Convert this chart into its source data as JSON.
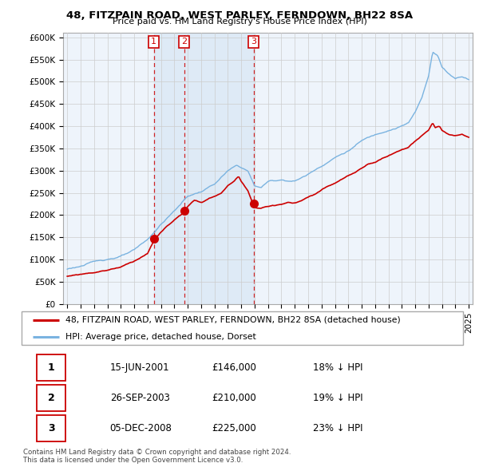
{
  "title": "48, FITZPAIN ROAD, WEST PARLEY, FERNDOWN, BH22 8SA",
  "subtitle": "Price paid vs. HM Land Registry's House Price Index (HPI)",
  "sale_dates_num": [
    2001.46,
    2003.74,
    2008.92
  ],
  "sale_prices": [
    146000,
    210000,
    225000
  ],
  "sale_labels": [
    "1",
    "2",
    "3"
  ],
  "hpi_color": "#7ab3e0",
  "sale_color": "#cc0000",
  "vline_color": "#cc0000",
  "shade_color": "#ddeeff",
  "yticks": [
    0,
    50000,
    100000,
    150000,
    200000,
    250000,
    300000,
    350000,
    400000,
    450000,
    500000,
    550000,
    600000
  ],
  "ytick_labels": [
    "£0",
    "£50K",
    "£100K",
    "£150K",
    "£200K",
    "£250K",
    "£300K",
    "£350K",
    "£400K",
    "£450K",
    "£500K",
    "£550K",
    "£600K"
  ],
  "ylim": [
    0,
    610000
  ],
  "xlim_min": 1994.7,
  "xlim_max": 2025.3,
  "xticks": [
    1995,
    1996,
    1997,
    1998,
    1999,
    2000,
    2001,
    2002,
    2003,
    2004,
    2005,
    2006,
    2007,
    2008,
    2009,
    2010,
    2011,
    2012,
    2013,
    2014,
    2015,
    2016,
    2017,
    2018,
    2019,
    2020,
    2021,
    2022,
    2023,
    2024,
    2025
  ],
  "legend_line1": "48, FITZPAIN ROAD, WEST PARLEY, FERNDOWN, BH22 8SA (detached house)",
  "legend_line2": "HPI: Average price, detached house, Dorset",
  "table_data": [
    [
      "1",
      "15-JUN-2001",
      "£146,000",
      "18% ↓ HPI"
    ],
    [
      "2",
      "26-SEP-2003",
      "£210,000",
      "19% ↓ HPI"
    ],
    [
      "3",
      "05-DEC-2008",
      "£225,000",
      "23% ↓ HPI"
    ]
  ],
  "footer1": "Contains HM Land Registry data © Crown copyright and database right 2024.",
  "footer2": "This data is licensed under the Open Government Licence v3.0.",
  "bg_color": "#ffffff",
  "grid_color": "#cccccc",
  "chart_bg": "#eef4fb"
}
